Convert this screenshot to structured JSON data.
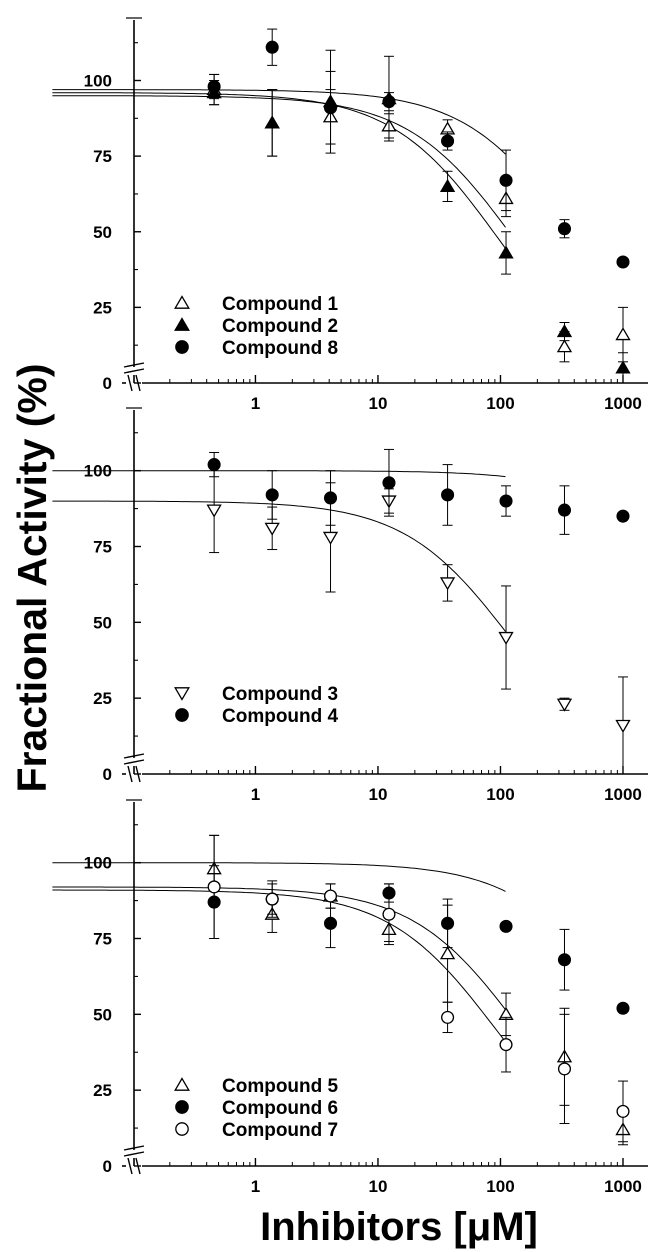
{
  "chart_data": {
    "type": "scatter",
    "xlabel": "Inhibitors [μM]",
    "ylabel": "Fractional Activity (%)",
    "x_scale": "log",
    "xlim": [
      0.11,
      1600
    ],
    "x_ticks": [
      1,
      10,
      100,
      1000
    ],
    "x_tick_labels": [
      "1",
      "10",
      "100",
      "1000"
    ],
    "panels": [
      {
        "ylim": [
          0,
          120
        ],
        "y_ticks": [
          0,
          25,
          50,
          75,
          100
        ],
        "y_tick_labels": [
          "0",
          "25",
          "50",
          "75",
          "100"
        ],
        "series": [
          {
            "name": "Compound 1",
            "marker": "triangle-up-open",
            "x": [
              0.46,
              1.37,
              4.1,
              12.3,
              37,
              111,
              333,
              1000
            ],
            "y": [
              97,
              86,
              88,
              85,
              84,
              61,
              12,
              16
            ],
            "err": [
              5,
              11,
              9,
              4,
              3,
              6,
              5,
              9
            ],
            "fit": {
              "top": 96,
              "bottom": 0,
              "ic50": 95,
              "hill": 1.0
            }
          },
          {
            "name": "Compound 2",
            "marker": "triangle-up-filled",
            "x": [
              0.46,
              1.37,
              4.1,
              12.3,
              37,
              111,
              333,
              1000
            ],
            "y": [
              96,
              86,
              93,
              94,
              65,
              43,
              17,
              5
            ],
            "err": [
              4,
              11,
              17,
              14,
              5,
              7,
              3,
              5
            ],
            "fit": {
              "top": 95,
              "bottom": 0,
              "ic50": 130,
              "hill": 1.0
            }
          },
          {
            "name": "Compound 8",
            "marker": "circle-filled",
            "x": [
              0.46,
              1.37,
              4.1,
              12.3,
              37,
              111,
              333,
              1000
            ],
            "y": [
              98,
              111,
              91,
              93,
              80,
              67,
              51,
              40
            ],
            "err": [
              4,
              6,
              12,
              3,
              3,
              10,
              3,
              0
            ],
            "fit": {
              "top": 97,
              "bottom": 0,
              "ic50": 390,
              "hill": 1.0
            }
          }
        ]
      },
      {
        "ylim": [
          0,
          120
        ],
        "y_ticks": [
          0,
          25,
          50,
          75,
          100
        ],
        "y_tick_labels": [
          "0",
          "25",
          "50",
          "75",
          "100"
        ],
        "series": [
          {
            "name": "Compound 3",
            "marker": "triangle-down-open",
            "x": [
              0.46,
              1.37,
              4.1,
              12.3,
              37,
              111,
              333,
              1000
            ],
            "y": [
              87,
              81,
              78,
              90,
              63,
              45,
              23,
              16
            ],
            "err": [
              14,
              7,
              18,
              4,
              6,
              17,
              2,
              16
            ],
            "fit": {
              "top": 90,
              "bottom": 0,
              "ic50": 120,
              "hill": 1.0
            }
          },
          {
            "name": "Compound 4",
            "marker": "circle-filled",
            "x": [
              0.46,
              1.37,
              4.1,
              12.3,
              37,
              111,
              333,
              1000
            ],
            "y": [
              102,
              92,
              91,
              96,
              92,
              90,
              87,
              85
            ],
            "err": [
              4,
              8,
              9,
              11,
              10,
              5,
              8,
              0
            ],
            "fit": {
              "top": 100,
              "bottom": 0,
              "ic50": 5500,
              "hill": 1.0
            }
          }
        ]
      },
      {
        "ylim": [
          0,
          120
        ],
        "y_ticks": [
          0,
          25,
          50,
          75,
          100
        ],
        "y_tick_labels": [
          "0",
          "25",
          "50",
          "75",
          "100"
        ],
        "series": [
          {
            "name": "Compound 5",
            "marker": "triangle-up-open",
            "x": [
              0.46,
              1.37,
              4.1,
              12.3,
              37,
              111,
              333,
              1000
            ],
            "y": [
              98,
              83,
              89,
              78,
              70,
              50,
              36,
              12
            ],
            "err": [
              11,
              6,
              4,
              4,
              16,
              7,
              16,
              5
            ],
            "fit": {
              "top": 92,
              "bottom": 0,
              "ic50": 140,
              "hill": 1.0
            }
          },
          {
            "name": "Compound 6",
            "marker": "circle-filled",
            "x": [
              0.46,
              1.37,
              4.1,
              12.3,
              37,
              111,
              333,
              1000
            ],
            "y": [
              87,
              88,
              80,
              90,
              80,
              79,
              68,
              52
            ],
            "err": [
              12,
              6,
              8,
              3,
              8,
              0,
              10,
              0
            ],
            "fit": {
              "top": 100,
              "bottom": 0,
              "ic50": 1050,
              "hill": 1.0
            }
          },
          {
            "name": "Compound 7",
            "marker": "circle-open",
            "x": [
              0.46,
              1.37,
              4.1,
              12.3,
              37,
              111,
              333,
              1000
            ],
            "y": [
              92,
              88,
              89,
              83,
              49,
              40,
              32,
              18
            ],
            "err": [
              17,
              5,
              4,
              10,
              5,
              9,
              18,
              10
            ],
            "fit": {
              "top": 91,
              "bottom": 0,
              "ic50": 90,
              "hill": 1.0
            }
          }
        ]
      }
    ]
  }
}
